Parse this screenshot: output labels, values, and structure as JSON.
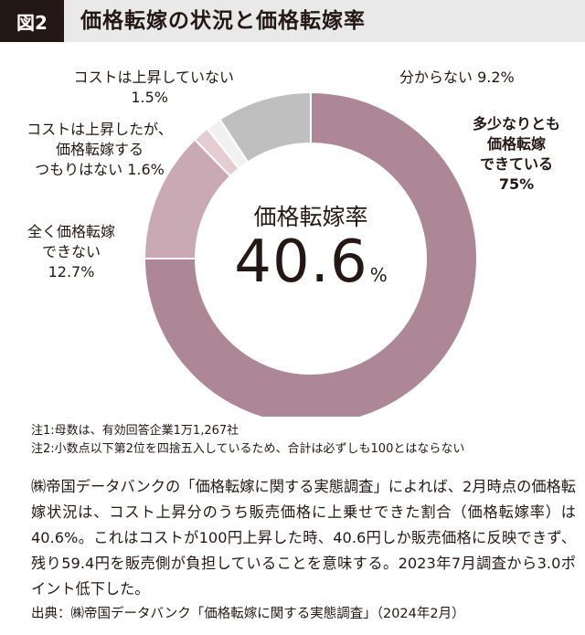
{
  "header": {
    "figure_number": "図2",
    "title": "価格転嫁の状況と価格転嫁率"
  },
  "chart_data": {
    "type": "pie",
    "variant": "donut",
    "slices": [
      {
        "label": "多少なりとも価格転嫁できている",
        "value": 75,
        "color": "#ae8796"
      },
      {
        "label": "全く価格転嫁できない",
        "value": 12.7,
        "color": "#c9a9b3"
      },
      {
        "label": "コストは上昇したが、価格転嫁するつもりはない",
        "value": 1.6,
        "color": "#e3cdd3"
      },
      {
        "label": "コストは上昇していない",
        "value": 1.5,
        "color": "#f1f1f1"
      },
      {
        "label": "分からない",
        "value": 9.2,
        "color": "#bfbfbf"
      }
    ],
    "center_title": "価格転嫁率",
    "center_value": "40.6",
    "center_unit": "%"
  },
  "labels": {
    "unknown": "分からない 9.2%",
    "passed_line1": "多少なりとも",
    "passed_line2": "価格転嫁",
    "passed_line3": "できている",
    "passed_line4": "75%",
    "no_rise_line1": "コストは上昇していない",
    "no_rise_line2": "1.5%",
    "no_intent_line1": "コストは上昇したが、",
    "no_intent_line2": "価格転嫁する",
    "no_intent_line3": "つもりはない 1.6%",
    "none_line1": "全く価格転嫁",
    "none_line2": "できない",
    "none_line3": "12.7%"
  },
  "notes": [
    "注1:母数は、有効回答企業1万1,267社",
    "注2:小数点以下第2位を四捨五入しているため、合計は必ずしも100とはならない"
  ],
  "body_text": "㈱帝国データバンクの「価格転嫁に関する実態調査」によれば、2月時点の価格転嫁状況は、コスト上昇分のうち販売価格に上乗せできた割合（価格転嫁率）は40.6%。これはコストが100円上昇した時、40.6円しか販売価格に反映できず、残り59.4円を販売側が負担していることを意味する。2023年7月調査から3.0ポイント低下した。",
  "source": "出典：㈱帝国データバンク「価格転嫁に関する実態調査」（2024年2月）"
}
